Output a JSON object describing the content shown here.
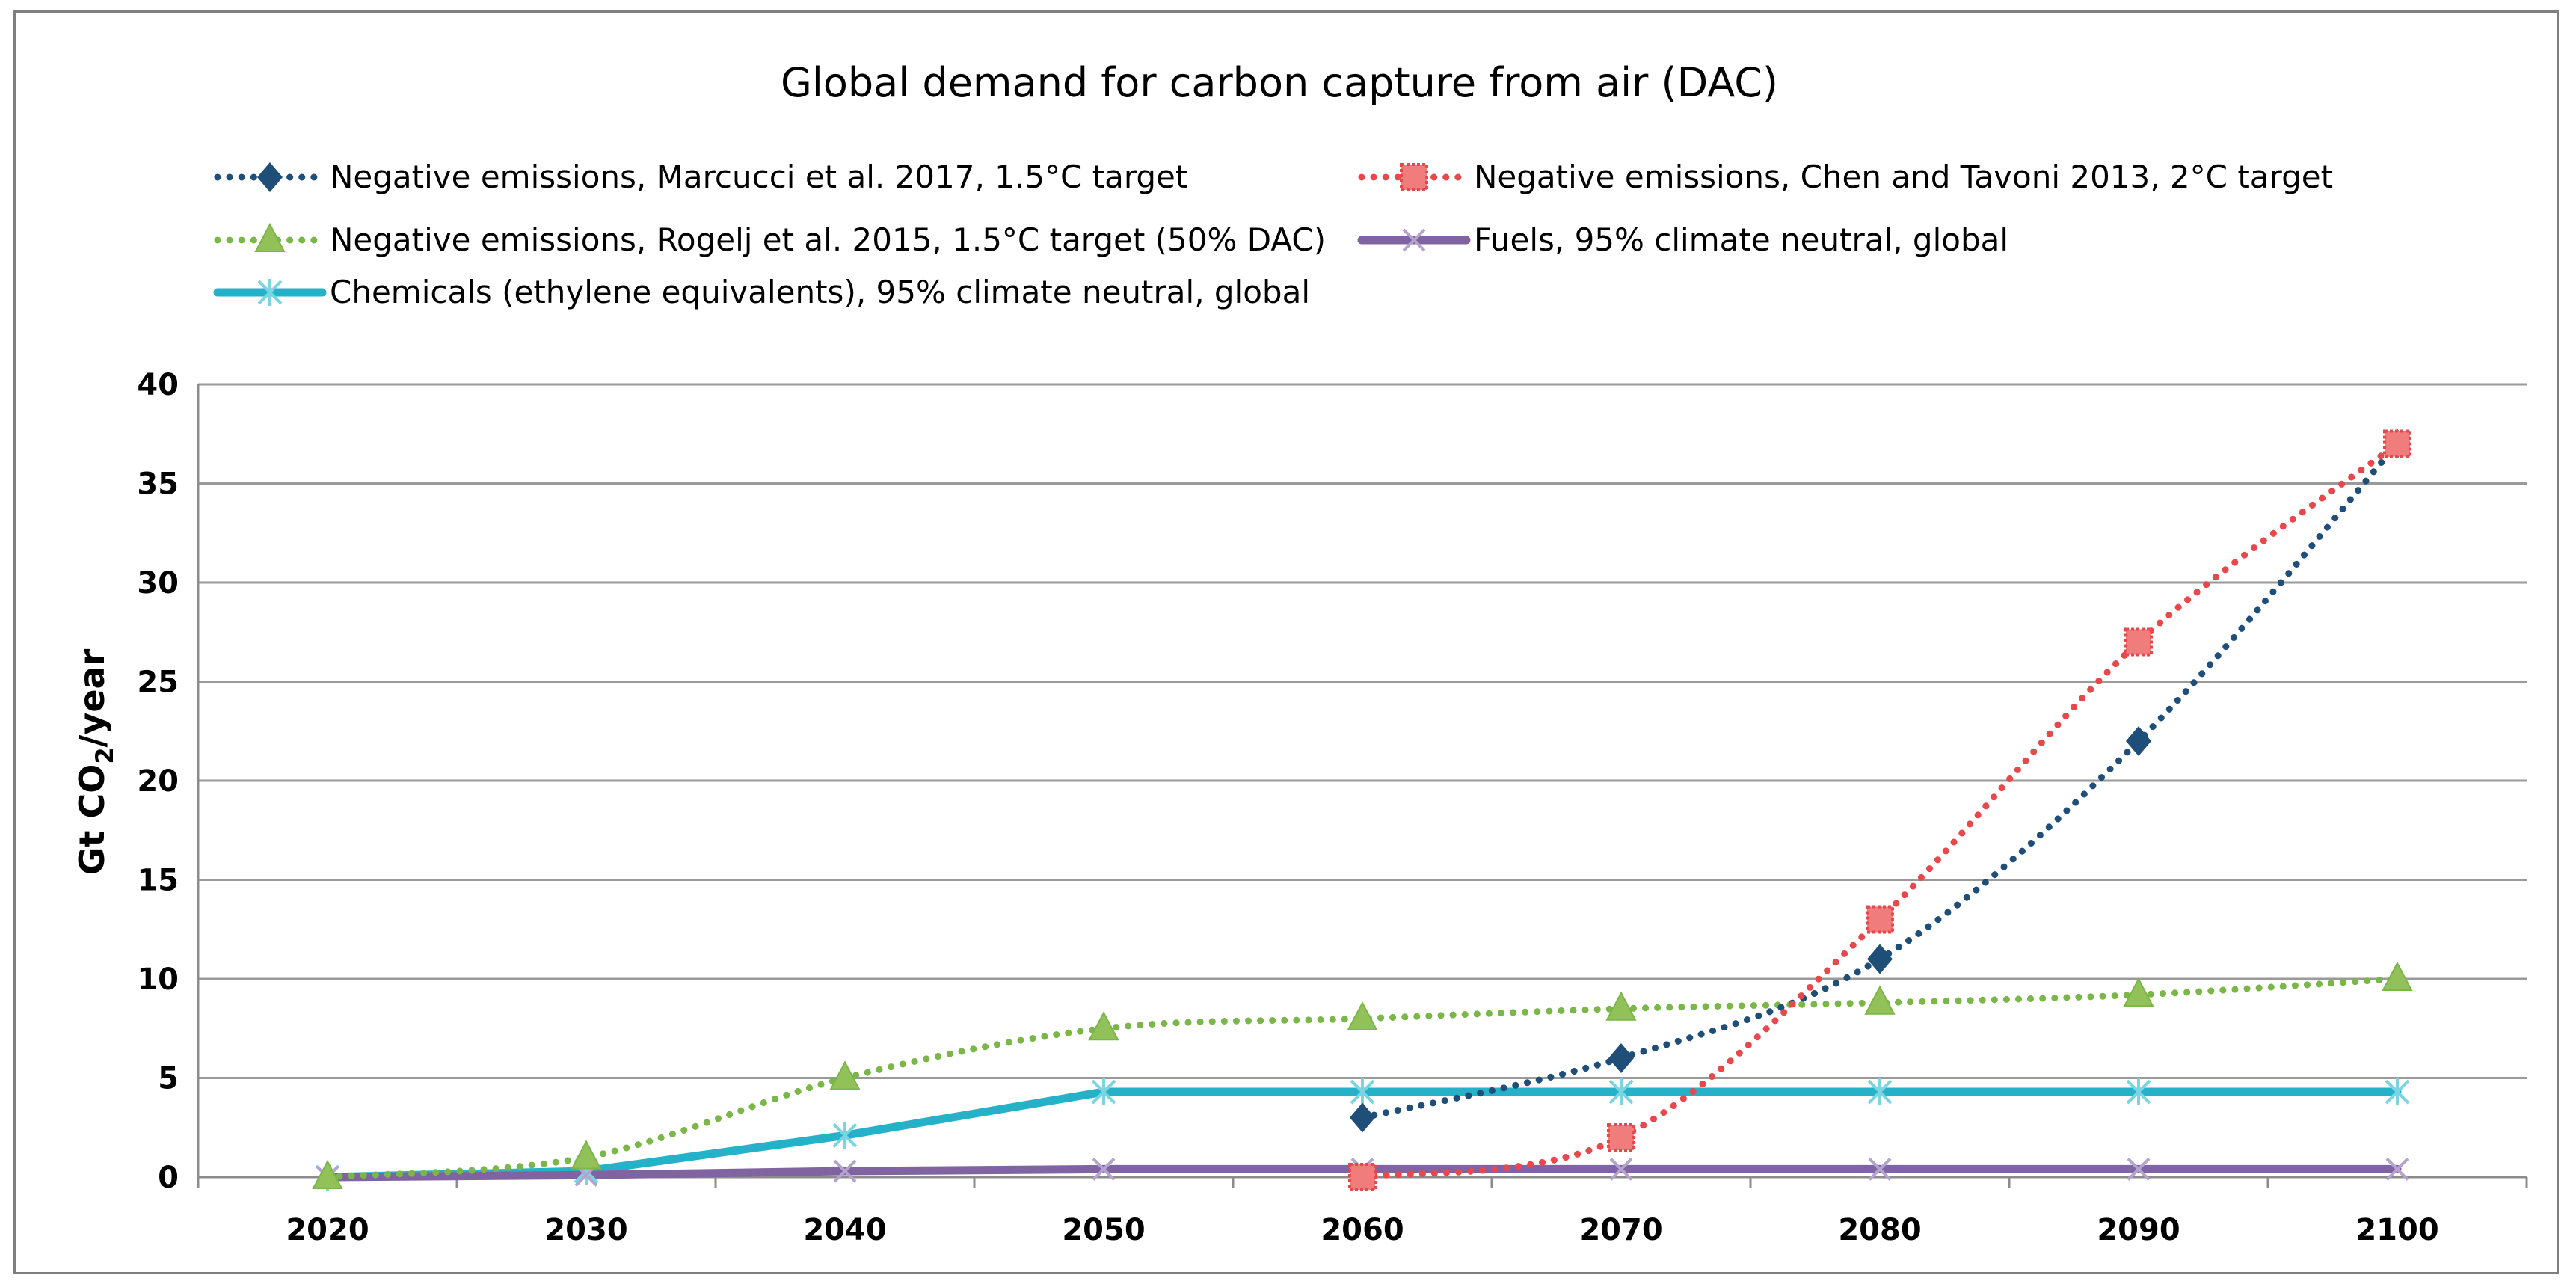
{
  "chart_data": {
    "type": "line",
    "title": "Global demand for carbon capture from air (DAC)",
    "xlabel": "",
    "ylabel": "Gt CO2/year",
    "ylabel_parts": {
      "main": "Gt CO",
      "sub": "2",
      "tail": "/year"
    },
    "categories": [
      "2020",
      "2030",
      "2040",
      "2050",
      "2060",
      "2070",
      "2080",
      "2090",
      "2100"
    ],
    "ylim": [
      0,
      40
    ],
    "yticks": [
      0,
      5,
      10,
      15,
      20,
      25,
      30,
      35,
      40
    ],
    "grid": "horizontal",
    "legend_position": "top",
    "series": [
      {
        "name": "Negative emissions, Marcucci et al. 2017, 1.5°C target",
        "color": "#1f4e79",
        "marker": "diamond",
        "line": "dotted",
        "smooth": true,
        "values": [
          null,
          null,
          null,
          null,
          3,
          6,
          11,
          22,
          37
        ]
      },
      {
        "name": "Negative emissions, Chen and Tavoni 2013, 2°C target",
        "color": "#e8474c",
        "marker": "square",
        "line": "dotted",
        "smooth": true,
        "values": [
          null,
          null,
          null,
          null,
          0,
          2,
          13,
          27,
          37
        ]
      },
      {
        "name": "Negative emissions, Rogelj et al. 2015, 1.5°C target (50% DAC)",
        "color": "#7ab648",
        "marker": "triangle",
        "line": "dotted",
        "smooth": true,
        "values": [
          0,
          1,
          5,
          7.5,
          8,
          8.5,
          8.8,
          9.2,
          10
        ]
      },
      {
        "name": "Fuels, 95% climate neutral, global",
        "color": "#8064a2",
        "marker": "x",
        "line": "solid",
        "smooth": false,
        "values": [
          0,
          0.1,
          0.3,
          0.4,
          0.4,
          0.4,
          0.4,
          0.4,
          0.4
        ]
      },
      {
        "name": "Chemicals (ethylene equivalents), 95% climate neutral, global",
        "color": "#25b2c9",
        "marker": "asterisk",
        "line": "solid",
        "smooth": false,
        "values": [
          0,
          0.3,
          2.1,
          4.3,
          4.3,
          4.3,
          4.3,
          4.3,
          4.3
        ]
      }
    ]
  }
}
